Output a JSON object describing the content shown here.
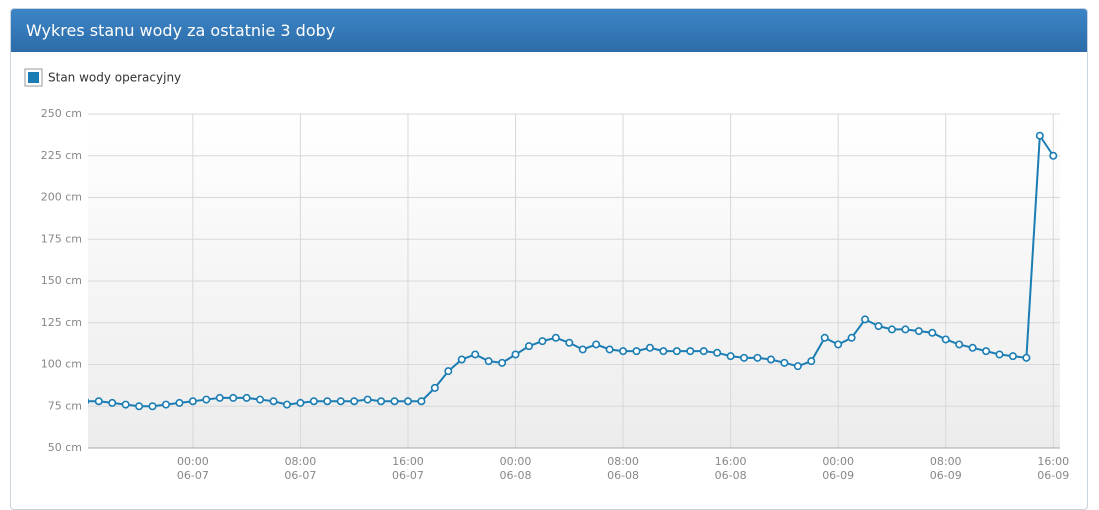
{
  "chart_data": {
    "type": "line",
    "title": "Wykres stanu wody za ostatnie 3 doby",
    "x": [
      "06-06 16:00",
      "06-06 17:00",
      "06-06 18:00",
      "06-06 19:00",
      "06-06 20:00",
      "06-06 21:00",
      "06-06 22:00",
      "06-06 23:00",
      "06-07 00:00",
      "06-07 01:00",
      "06-07 02:00",
      "06-07 03:00",
      "06-07 04:00",
      "06-07 05:00",
      "06-07 06:00",
      "06-07 07:00",
      "06-07 08:00",
      "06-07 09:00",
      "06-07 10:00",
      "06-07 11:00",
      "06-07 12:00",
      "06-07 13:00",
      "06-07 14:00",
      "06-07 15:00",
      "06-07 16:00",
      "06-07 17:00",
      "06-07 18:00",
      "06-07 19:00",
      "06-07 20:00",
      "06-07 21:00",
      "06-07 22:00",
      "06-07 23:00",
      "06-08 00:00",
      "06-08 01:00",
      "06-08 02:00",
      "06-08 03:00",
      "06-08 04:00",
      "06-08 05:00",
      "06-08 06:00",
      "06-08 07:00",
      "06-08 08:00",
      "06-08 09:00",
      "06-08 10:00",
      "06-08 11:00",
      "06-08 12:00",
      "06-08 13:00",
      "06-08 14:00",
      "06-08 15:00",
      "06-08 16:00",
      "06-08 17:00",
      "06-08 18:00",
      "06-08 19:00",
      "06-08 20:00",
      "06-08 21:00",
      "06-08 22:00",
      "06-08 23:00",
      "06-09 00:00",
      "06-09 01:00",
      "06-09 02:00",
      "06-09 03:00",
      "06-09 04:00",
      "06-09 05:00",
      "06-09 06:00",
      "06-09 07:00",
      "06-09 08:00",
      "06-09 09:00",
      "06-09 10:00",
      "06-09 11:00",
      "06-09 12:00",
      "06-09 13:00",
      "06-09 14:00",
      "06-09 15:00",
      "06-09 16:00"
    ],
    "series": [
      {
        "name": "Stan wody operacyjny",
        "color": "#1b7db3",
        "values": [
          78,
          78,
          77,
          76,
          75,
          75,
          76,
          77,
          78,
          79,
          80,
          80,
          80,
          79,
          78,
          76,
          77,
          78,
          78,
          78,
          78,
          79,
          78,
          78,
          78,
          78,
          86,
          96,
          103,
          106,
          102,
          101,
          106,
          111,
          114,
          116,
          113,
          109,
          112,
          109,
          108,
          108,
          110,
          108,
          108,
          108,
          108,
          107,
          105,
          104,
          104,
          103,
          101,
          99,
          102,
          116,
          112,
          116,
          127,
          123,
          121,
          121,
          120,
          119,
          115,
          112,
          110,
          108,
          106,
          105,
          104,
          237,
          225
        ]
      }
    ],
    "xlim": [
      "06-06 16:12",
      "06-09 16:30"
    ],
    "xticks": [
      {
        "value": "06-07 00:00",
        "label": [
          "00:00",
          "06-07"
        ]
      },
      {
        "value": "06-07 08:00",
        "label": [
          "08:00",
          "06-07"
        ]
      },
      {
        "value": "06-07 16:00",
        "label": [
          "16:00",
          "06-07"
        ]
      },
      {
        "value": "06-08 00:00",
        "label": [
          "00:00",
          "06-08"
        ]
      },
      {
        "value": "06-08 08:00",
        "label": [
          "08:00",
          "06-08"
        ]
      },
      {
        "value": "06-08 16:00",
        "label": [
          "16:00",
          "06-08"
        ]
      },
      {
        "value": "06-09 00:00",
        "label": [
          "00:00",
          "06-09"
        ]
      },
      {
        "value": "06-09 08:00",
        "label": [
          "08:00",
          "06-09"
        ]
      },
      {
        "value": "06-09 16:00",
        "label": [
          "16:00",
          "06-09"
        ]
      }
    ],
    "ylim": [
      50,
      250
    ],
    "yticks": [
      {
        "value": 50,
        "label": "50 cm"
      },
      {
        "value": 75,
        "label": "75 cm"
      },
      {
        "value": 100,
        "label": "100 cm"
      },
      {
        "value": 125,
        "label": "125 cm"
      },
      {
        "value": 150,
        "label": "150 cm"
      },
      {
        "value": 175,
        "label": "175 cm"
      },
      {
        "value": 200,
        "label": "200 cm"
      },
      {
        "value": 225,
        "label": "225 cm"
      },
      {
        "value": 250,
        "label": "250 cm"
      }
    ],
    "grid": true
  }
}
